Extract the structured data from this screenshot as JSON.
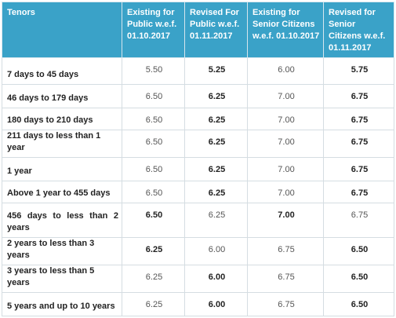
{
  "table": {
    "headers": [
      "Tenors",
      "Existing for Public w.e.f. 01.10.2017",
      "Revised For Public w.e.f. 01.11.2017",
      "Existing for Senior Citizens w.e.f. 01.10.2017",
      "Revised for Senior Citizens w.e.f. 01.11.2017"
    ],
    "rows": [
      {
        "tenor": "7 days to 45 days",
        "existing_public": "5.50",
        "revised_public": "5.25",
        "existing_senior": "6.00",
        "revised_senior": "5.75"
      },
      {
        "tenor": "46 days to 179 days",
        "existing_public": "6.50",
        "revised_public": "6.25",
        "existing_senior": "7.00",
        "revised_senior": "6.75"
      },
      {
        "tenor": "180 days to 210 days",
        "existing_public": "6.50",
        "revised_public": "6.25",
        "existing_senior": "7.00",
        "revised_senior": "6.75"
      },
      {
        "tenor": "211 days to less than 1 year",
        "existing_public": "6.50",
        "revised_public": "6.25",
        "existing_senior": "7.00",
        "revised_senior": "6.75"
      },
      {
        "tenor": "1 year",
        "existing_public": "6.50",
        "revised_public": "6.25",
        "existing_senior": "7.00",
        "revised_senior": "6.75"
      },
      {
        "tenor": "Above 1 year to 455 days",
        "existing_public": "6.50",
        "revised_public": "6.25",
        "existing_senior": "7.00",
        "revised_senior": "6.75"
      },
      {
        "tenor": "456 days to less than 2 years",
        "existing_public": "6.50",
        "revised_public": "6.25",
        "existing_senior": "7.00",
        "revised_senior": "6.75"
      },
      {
        "tenor": "2 years to less than 3 years",
        "existing_public": "6.25",
        "revised_public": "6.00",
        "existing_senior": "6.75",
        "revised_senior": "6.50"
      },
      {
        "tenor": "3 years to less than 5 years",
        "existing_public": "6.25",
        "revised_public": "6.00",
        "existing_senior": "6.75",
        "revised_senior": "6.50"
      },
      {
        "tenor": "5 years and up to 10 years",
        "existing_public": "6.25",
        "revised_public": "6.00",
        "existing_senior": "6.75",
        "revised_senior": "6.50"
      }
    ]
  },
  "colors": {
    "header_bg": "#3aa2c8",
    "header_text": "#ffffff",
    "grid": "#d5dde2"
  }
}
